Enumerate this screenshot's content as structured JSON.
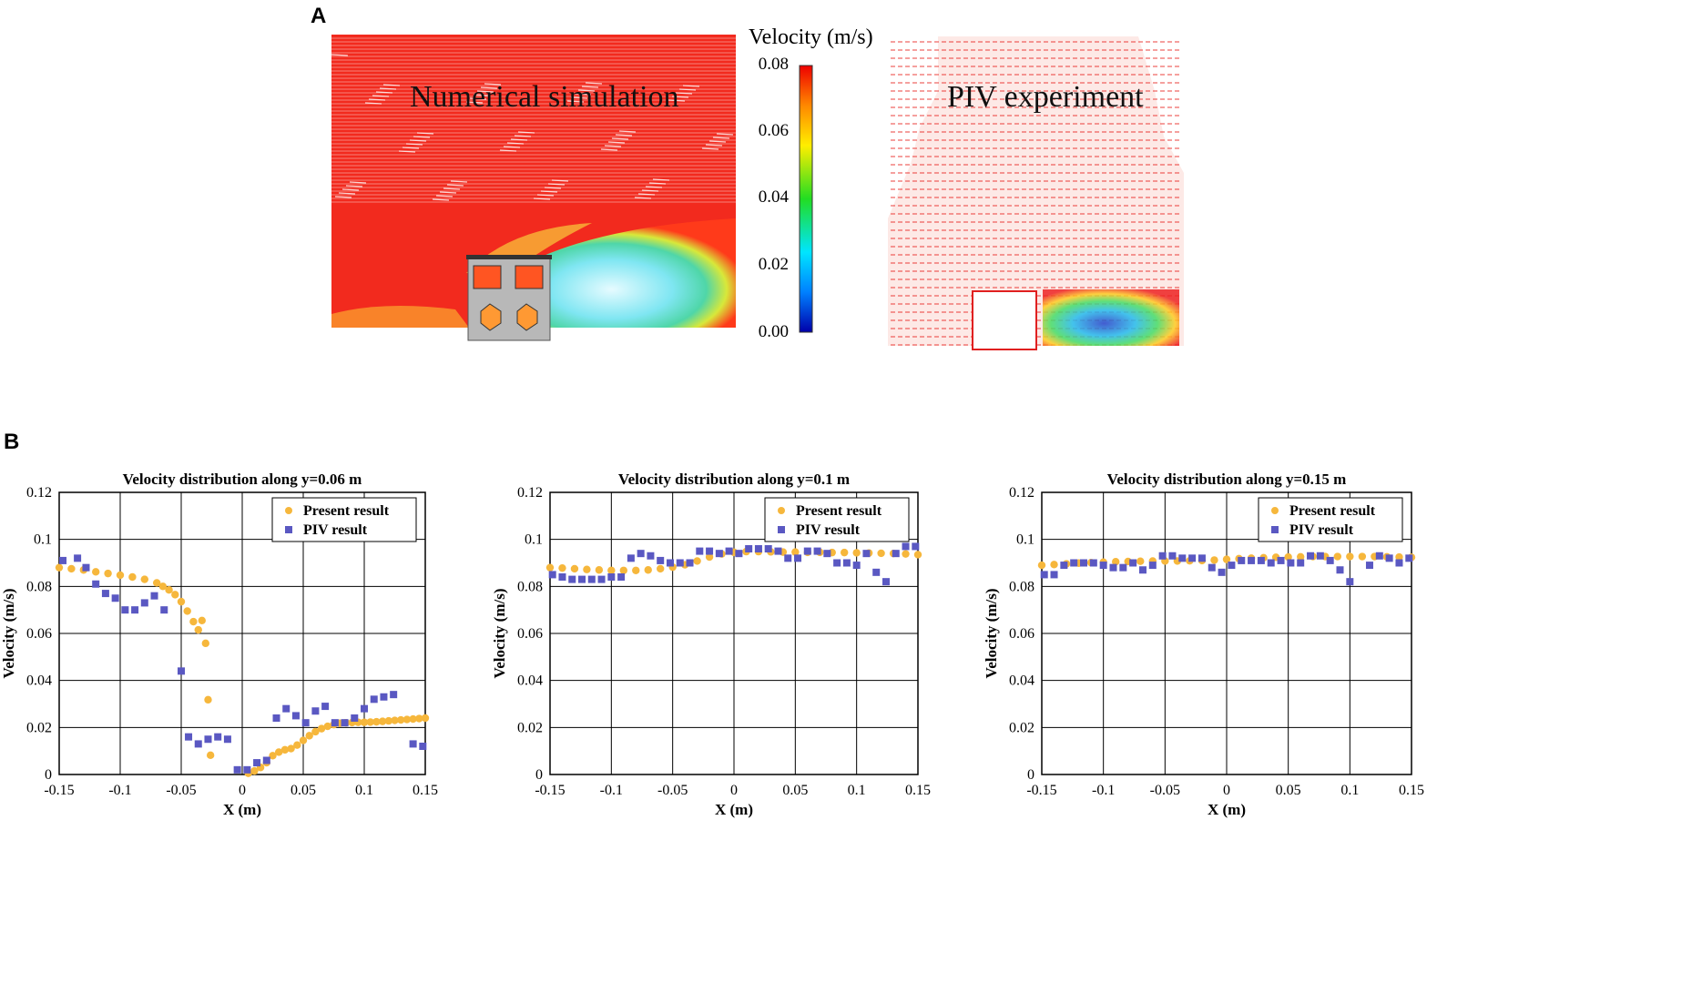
{
  "panel_a": {
    "letter": "A",
    "sim_label": "Numerical simulation",
    "piv_label": "PIV  experiment",
    "colorbar": {
      "title": "Velocity (m/s)",
      "ticks": [
        "0.08",
        "0.06",
        "0.04",
        "0.02",
        "0.00"
      ],
      "min": 0.0,
      "max": 0.08
    }
  },
  "panel_b": {
    "letter": "B"
  },
  "colors": {
    "present": "#f6b73c",
    "piv": "#5a58c2",
    "vectors": "#e8201c"
  },
  "chart_data": [
    {
      "type": "scatter",
      "title": "Velocity distribution along y=0.06 m",
      "xlabel": "X (m)",
      "ylabel": "Velocity (m/s)",
      "xlim": [
        -0.15,
        0.15
      ],
      "ylim": [
        0,
        0.12
      ],
      "xticks": [
        -0.15,
        -0.1,
        -0.05,
        0,
        0.05,
        0.1,
        0.15
      ],
      "xtick_labels": [
        "-0.15",
        "-0.1",
        "-0.05",
        "0",
        "0.05",
        "0.1",
        "0.15"
      ],
      "yticks": [
        0,
        0.02,
        0.04,
        0.06,
        0.08,
        0.1,
        0.12
      ],
      "ytick_labels": [
        "0",
        "0.02",
        "0.04",
        "0.06",
        "0.08",
        "0.1",
        "0.12"
      ],
      "grid": true,
      "legend_position": "top-right",
      "series": [
        {
          "name": "Present result",
          "marker": "circle",
          "points": [
            [
              -0.15,
              0.088
            ],
            [
              -0.14,
              0.0875
            ],
            [
              -0.13,
              0.087
            ],
            [
              -0.12,
              0.0862
            ],
            [
              -0.11,
              0.0855
            ],
            [
              -0.1,
              0.0848
            ],
            [
              -0.09,
              0.084
            ],
            [
              -0.08,
              0.083
            ],
            [
              -0.07,
              0.0815
            ],
            [
              -0.065,
              0.08
            ],
            [
              -0.06,
              0.0785
            ],
            [
              -0.055,
              0.0765
            ],
            [
              -0.05,
              0.0735
            ],
            [
              -0.045,
              0.0695
            ],
            [
              -0.04,
              0.065
            ],
            [
              -0.036,
              0.0615
            ],
            [
              -0.033,
              0.0655
            ],
            [
              -0.03,
              0.0558
            ],
            [
              -0.028,
              0.0318
            ],
            [
              -0.026,
              0.0082
            ],
            [
              0.005,
              0.0005
            ],
            [
              0.01,
              0.0015
            ],
            [
              0.015,
              0.003
            ],
            [
              0.02,
              0.005
            ],
            [
              0.025,
              0.008
            ],
            [
              0.03,
              0.0095
            ],
            [
              0.035,
              0.0105
            ],
            [
              0.04,
              0.011
            ],
            [
              0.045,
              0.0125
            ],
            [
              0.05,
              0.0145
            ],
            [
              0.055,
              0.0165
            ],
            [
              0.06,
              0.0182
            ],
            [
              0.065,
              0.0195
            ],
            [
              0.07,
              0.0205
            ],
            [
              0.075,
              0.0212
            ],
            [
              0.08,
              0.0218
            ],
            [
              0.085,
              0.022
            ],
            [
              0.09,
              0.0221
            ],
            [
              0.095,
              0.0222
            ],
            [
              0.1,
              0.0222
            ],
            [
              0.105,
              0.0223
            ],
            [
              0.11,
              0.0224
            ],
            [
              0.115,
              0.0226
            ],
            [
              0.12,
              0.0228
            ],
            [
              0.125,
              0.023
            ],
            [
              0.13,
              0.0232
            ],
            [
              0.135,
              0.0234
            ],
            [
              0.14,
              0.0236
            ],
            [
              0.145,
              0.0238
            ],
            [
              0.15,
              0.024
            ]
          ]
        },
        {
          "name": "PIV result",
          "marker": "square",
          "points": [
            [
              -0.147,
              0.091
            ],
            [
              -0.135,
              0.092
            ],
            [
              -0.128,
              0.088
            ],
            [
              -0.12,
              0.081
            ],
            [
              -0.112,
              0.077
            ],
            [
              -0.104,
              0.075
            ],
            [
              -0.096,
              0.07
            ],
            [
              -0.088,
              0.07
            ],
            [
              -0.08,
              0.073
            ],
            [
              -0.072,
              0.076
            ],
            [
              -0.064,
              0.07
            ],
            [
              -0.05,
              0.044
            ],
            [
              -0.044,
              0.016
            ],
            [
              -0.036,
              0.013
            ],
            [
              -0.028,
              0.015
            ],
            [
              -0.02,
              0.016
            ],
            [
              -0.012,
              0.015
            ],
            [
              -0.004,
              0.002
            ],
            [
              0.004,
              0.002
            ],
            [
              0.012,
              0.005
            ],
            [
              0.02,
              0.006
            ],
            [
              0.028,
              0.024
            ],
            [
              0.036,
              0.028
            ],
            [
              0.044,
              0.025
            ],
            [
              0.052,
              0.022
            ],
            [
              0.06,
              0.027
            ],
            [
              0.068,
              0.029
            ],
            [
              0.076,
              0.022
            ],
            [
              0.084,
              0.022
            ],
            [
              0.092,
              0.024
            ],
            [
              0.1,
              0.028
            ],
            [
              0.108,
              0.032
            ],
            [
              0.116,
              0.033
            ],
            [
              0.124,
              0.034
            ],
            [
              0.14,
              0.013
            ],
            [
              0.148,
              0.012
            ]
          ]
        }
      ]
    },
    {
      "type": "scatter",
      "title": "Velocity distribution along y=0.1 m",
      "xlabel": "X (m)",
      "ylabel": "Velocity (m/s)",
      "xlim": [
        -0.15,
        0.15
      ],
      "ylim": [
        0,
        0.12
      ],
      "xticks": [
        -0.15,
        -0.1,
        -0.05,
        0,
        0.05,
        0.1,
        0.15
      ],
      "xtick_labels": [
        "-0.15",
        "-0.1",
        "-0.05",
        "0",
        "0.05",
        "0.1",
        "0.15"
      ],
      "yticks": [
        0,
        0.02,
        0.04,
        0.06,
        0.08,
        0.1,
        0.12
      ],
      "ytick_labels": [
        "0",
        "0.02",
        "0.04",
        "0.06",
        "0.08",
        "0.1",
        "0.12"
      ],
      "grid": true,
      "legend_position": "top-right",
      "series": [
        {
          "name": "Present result",
          "marker": "circle",
          "points": [
            [
              -0.15,
              0.088
            ],
            [
              -0.14,
              0.0878
            ],
            [
              -0.13,
              0.0875
            ],
            [
              -0.12,
              0.0872
            ],
            [
              -0.11,
              0.087
            ],
            [
              -0.1,
              0.0868
            ],
            [
              -0.09,
              0.0868
            ],
            [
              -0.08,
              0.0868
            ],
            [
              -0.07,
              0.087
            ],
            [
              -0.06,
              0.0875
            ],
            [
              -0.05,
              0.0882
            ],
            [
              -0.04,
              0.0892
            ],
            [
              -0.03,
              0.0908
            ],
            [
              -0.02,
              0.0925
            ],
            [
              -0.01,
              0.0938
            ],
            [
              0.0,
              0.0945
            ],
            [
              0.01,
              0.0948
            ],
            [
              0.02,
              0.0948
            ],
            [
              0.03,
              0.0947
            ],
            [
              0.04,
              0.0946
            ],
            [
              0.05,
              0.0946
            ],
            [
              0.06,
              0.0945
            ],
            [
              0.07,
              0.0945
            ],
            [
              0.08,
              0.0944
            ],
            [
              0.09,
              0.0944
            ],
            [
              0.1,
              0.0943
            ],
            [
              0.11,
              0.0942
            ],
            [
              0.12,
              0.0941
            ],
            [
              0.13,
              0.094
            ],
            [
              0.14,
              0.0938
            ],
            [
              0.15,
              0.0935
            ]
          ]
        },
        {
          "name": "PIV result",
          "marker": "square",
          "points": [
            [
              -0.148,
              0.085
            ],
            [
              -0.14,
              0.084
            ],
            [
              -0.132,
              0.083
            ],
            [
              -0.124,
              0.083
            ],
            [
              -0.116,
              0.083
            ],
            [
              -0.108,
              0.083
            ],
            [
              -0.1,
              0.084
            ],
            [
              -0.092,
              0.084
            ],
            [
              -0.084,
              0.092
            ],
            [
              -0.076,
              0.094
            ],
            [
              -0.068,
              0.093
            ],
            [
              -0.06,
              0.091
            ],
            [
              -0.052,
              0.09
            ],
            [
              -0.044,
              0.09
            ],
            [
              -0.036,
              0.09
            ],
            [
              -0.028,
              0.095
            ],
            [
              -0.02,
              0.095
            ],
            [
              -0.012,
              0.094
            ],
            [
              -0.004,
              0.095
            ],
            [
              0.004,
              0.094
            ],
            [
              0.012,
              0.096
            ],
            [
              0.02,
              0.096
            ],
            [
              0.028,
              0.096
            ],
            [
              0.036,
              0.095
            ],
            [
              0.044,
              0.092
            ],
            [
              0.052,
              0.092
            ],
            [
              0.06,
              0.095
            ],
            [
              0.068,
              0.095
            ],
            [
              0.076,
              0.094
            ],
            [
              0.084,
              0.09
            ],
            [
              0.092,
              0.09
            ],
            [
              0.1,
              0.089
            ],
            [
              0.108,
              0.094
            ],
            [
              0.116,
              0.086
            ],
            [
              0.124,
              0.082
            ],
            [
              0.132,
              0.094
            ],
            [
              0.14,
              0.097
            ],
            [
              0.148,
              0.097
            ]
          ]
        }
      ]
    },
    {
      "type": "scatter",
      "title": "Velocity distribution along y=0.15 m",
      "xlabel": "X (m)",
      "ylabel": "Velocity (m/s)",
      "xlim": [
        -0.15,
        0.15
      ],
      "ylim": [
        0,
        0.12
      ],
      "xticks": [
        -0.15,
        -0.1,
        -0.05,
        0,
        0.05,
        0.1,
        0.15
      ],
      "xtick_labels": [
        "-0.15",
        "-0.1",
        "-0.05",
        "0",
        "0.05",
        "0.1",
        "0.15"
      ],
      "yticks": [
        0,
        0.02,
        0.04,
        0.06,
        0.08,
        0.1,
        0.12
      ],
      "ytick_labels": [
        "0",
        "0.02",
        "0.04",
        "0.06",
        "0.08",
        "0.1",
        "0.12"
      ],
      "grid": true,
      "legend_position": "top-right",
      "series": [
        {
          "name": "Present result",
          "marker": "circle",
          "points": [
            [
              -0.15,
              0.089
            ],
            [
              -0.14,
              0.0893
            ],
            [
              -0.13,
              0.0896
            ],
            [
              -0.12,
              0.0899
            ],
            [
              -0.11,
              0.0901
            ],
            [
              -0.1,
              0.0903
            ],
            [
              -0.09,
              0.0905
            ],
            [
              -0.08,
              0.0906
            ],
            [
              -0.07,
              0.0907
            ],
            [
              -0.06,
              0.0908
            ],
            [
              -0.05,
              0.0908
            ],
            [
              -0.04,
              0.0908
            ],
            [
              -0.03,
              0.0909
            ],
            [
              -0.02,
              0.091
            ],
            [
              -0.01,
              0.0912
            ],
            [
              0.0,
              0.0915
            ],
            [
              0.01,
              0.0918
            ],
            [
              0.02,
              0.092
            ],
            [
              0.03,
              0.0922
            ],
            [
              0.04,
              0.0924
            ],
            [
              0.05,
              0.0925
            ],
            [
              0.06,
              0.0926
            ],
            [
              0.07,
              0.0927
            ],
            [
              0.08,
              0.0927
            ],
            [
              0.09,
              0.0927
            ],
            [
              0.1,
              0.0927
            ],
            [
              0.11,
              0.0927
            ],
            [
              0.12,
              0.0927
            ],
            [
              0.13,
              0.0926
            ],
            [
              0.14,
              0.0925
            ],
            [
              0.15,
              0.0924
            ]
          ]
        },
        {
          "name": "PIV result",
          "marker": "square",
          "points": [
            [
              -0.148,
              0.085
            ],
            [
              -0.14,
              0.085
            ],
            [
              -0.132,
              0.089
            ],
            [
              -0.124,
              0.09
            ],
            [
              -0.116,
              0.09
            ],
            [
              -0.108,
              0.09
            ],
            [
              -0.1,
              0.089
            ],
            [
              -0.092,
              0.088
            ],
            [
              -0.084,
              0.088
            ],
            [
              -0.076,
              0.09
            ],
            [
              -0.068,
              0.087
            ],
            [
              -0.06,
              0.089
            ],
            [
              -0.052,
              0.093
            ],
            [
              -0.044,
              0.093
            ],
            [
              -0.036,
              0.092
            ],
            [
              -0.028,
              0.092
            ],
            [
              -0.02,
              0.092
            ],
            [
              -0.012,
              0.088
            ],
            [
              -0.004,
              0.086
            ],
            [
              0.004,
              0.089
            ],
            [
              0.012,
              0.091
            ],
            [
              0.02,
              0.091
            ],
            [
              0.028,
              0.091
            ],
            [
              0.036,
              0.09
            ],
            [
              0.044,
              0.091
            ],
            [
              0.052,
              0.09
            ],
            [
              0.06,
              0.09
            ],
            [
              0.068,
              0.093
            ],
            [
              0.076,
              0.093
            ],
            [
              0.084,
              0.091
            ],
            [
              0.092,
              0.087
            ],
            [
              0.1,
              0.082
            ],
            [
              0.116,
              0.089
            ],
            [
              0.124,
              0.093
            ],
            [
              0.132,
              0.092
            ],
            [
              0.14,
              0.09
            ],
            [
              0.148,
              0.092
            ]
          ]
        }
      ]
    }
  ]
}
